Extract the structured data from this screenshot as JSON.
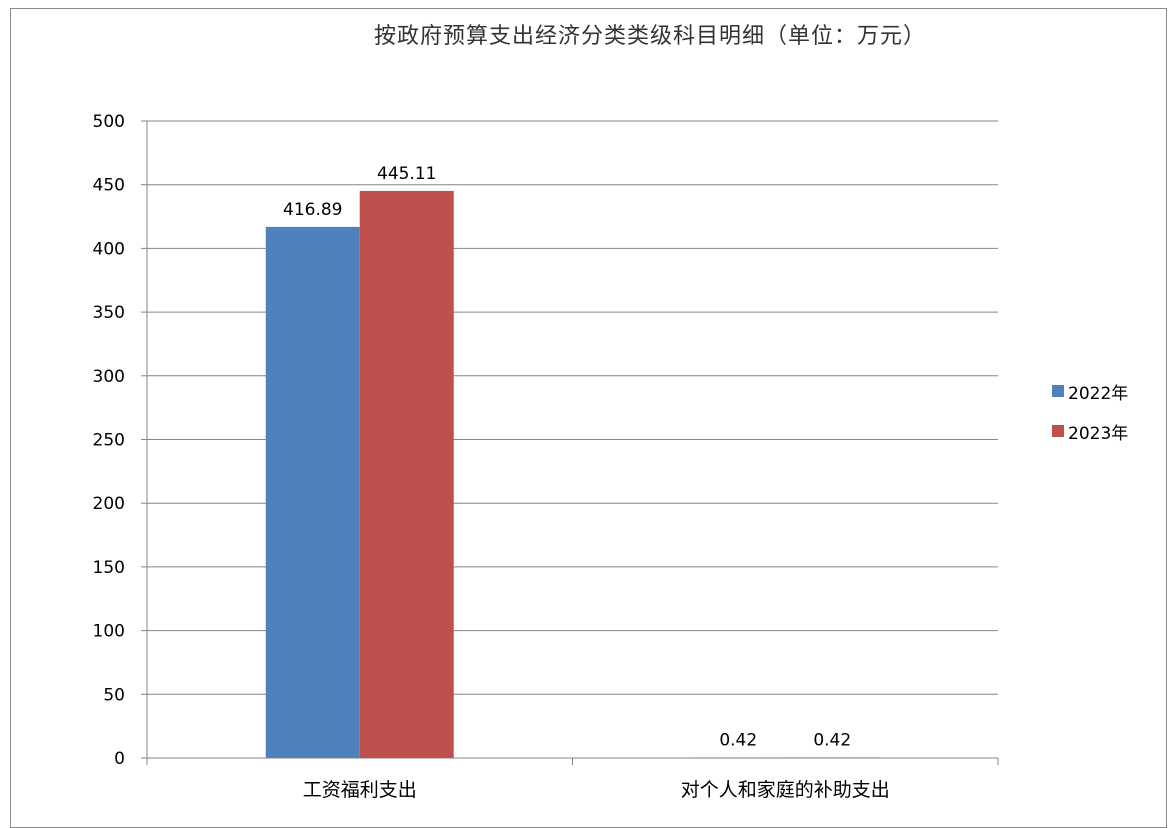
{
  "chart_data": {
    "type": "bar",
    "title": "按政府预算支出经济分类类级科目明细（单位：万元）",
    "categories": [
      "工资福利支出",
      "对个人和家庭的补助支出"
    ],
    "series": [
      {
        "name": "2022年",
        "values": [
          416.89,
          0.42
        ],
        "labels": [
          "416.89",
          "0.42"
        ],
        "color": "#4F81BD"
      },
      {
        "name": "2023年",
        "values": [
          445.11,
          0.42
        ],
        "labels": [
          "445.11",
          "0.42"
        ],
        "color": "#C0504D"
      }
    ],
    "yticks": [
      0,
      50,
      100,
      150,
      200,
      250,
      300,
      350,
      400,
      450,
      500
    ],
    "ylim": [
      0,
      500
    ],
    "grid": true,
    "legend_position": "right",
    "xlabel": "",
    "ylabel": ""
  }
}
